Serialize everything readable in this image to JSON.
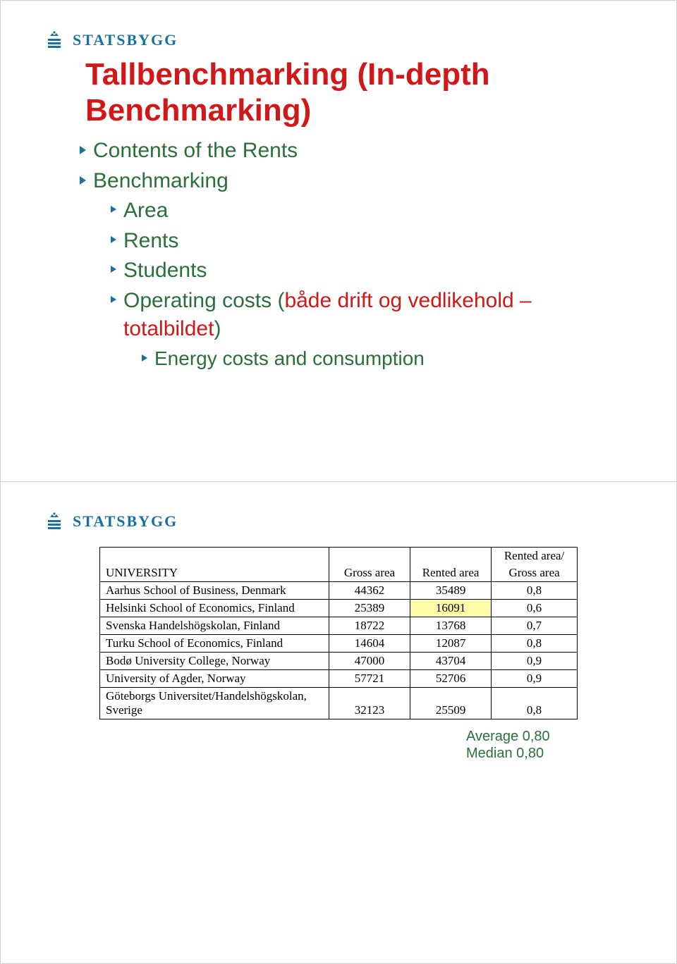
{
  "brand": {
    "name": "STATSBYGG",
    "accent_color": "#1a6fa3"
  },
  "slide1": {
    "title": "Tallbenchmarking (In-depth Benchmarking)",
    "bullets": [
      {
        "level": 1,
        "text": "Contents of the Rents"
      },
      {
        "level": 1,
        "text": "Benchmarking"
      },
      {
        "level": 2,
        "text": "Area"
      },
      {
        "level": 2,
        "text": "Rents"
      },
      {
        "level": 2,
        "text": "Students"
      },
      {
        "level": 2,
        "prefix": "Operating costs (",
        "red": "både drift og vedlikehold – totalbildet",
        "suffix": ")"
      },
      {
        "level": 3,
        "text": "Energy costs and consumption"
      }
    ]
  },
  "slide2": {
    "table": {
      "columns": [
        {
          "label_top": "",
          "label_bot": "UNIVERSITY",
          "align": "left",
          "width": "48%"
        },
        {
          "label_top": "",
          "label_bot": "Gross area",
          "align": "center",
          "width": "17%"
        },
        {
          "label_top": "",
          "label_bot": "Rented area",
          "align": "center",
          "width": "17%"
        },
        {
          "label_top": "Rented area/",
          "label_bot": "Gross area",
          "align": "center",
          "width": "18%"
        }
      ],
      "rows": [
        {
          "name": "Aarhus School of Business, Denmark",
          "gross": "44362",
          "rented": "35489",
          "ratio": "0,8",
          "highlight_rented": false
        },
        {
          "name": "Helsinki School of Economics, Finland",
          "gross": "25389",
          "rented": "16091",
          "ratio": "0,6",
          "highlight_rented": true
        },
        {
          "name": "Svenska Handelshögskolan, Finland",
          "gross": "18722",
          "rented": "13768",
          "ratio": "0,7",
          "highlight_rented": false
        },
        {
          "name": "Turku School of Economics, Finland",
          "gross": "14604",
          "rented": "12087",
          "ratio": "0,8",
          "highlight_rented": false
        },
        {
          "name": "Bodø University College, Norway",
          "gross": "47000",
          "rented": "43704",
          "ratio": "0,9",
          "highlight_rented": false
        },
        {
          "name": "University of Agder, Norway",
          "gross": "57721",
          "rented": "52706",
          "ratio": "0,9",
          "highlight_rented": false
        },
        {
          "name": "Göteborgs Universitet/Handelshögskolan, Sverige",
          "gross": "32123",
          "rented": "25509",
          "ratio": "0,8",
          "highlight_rented": false
        }
      ]
    },
    "stats": {
      "average_label": "Average",
      "average_value": "0,80",
      "median_label": "Median",
      "median_value": "0,80"
    }
  }
}
